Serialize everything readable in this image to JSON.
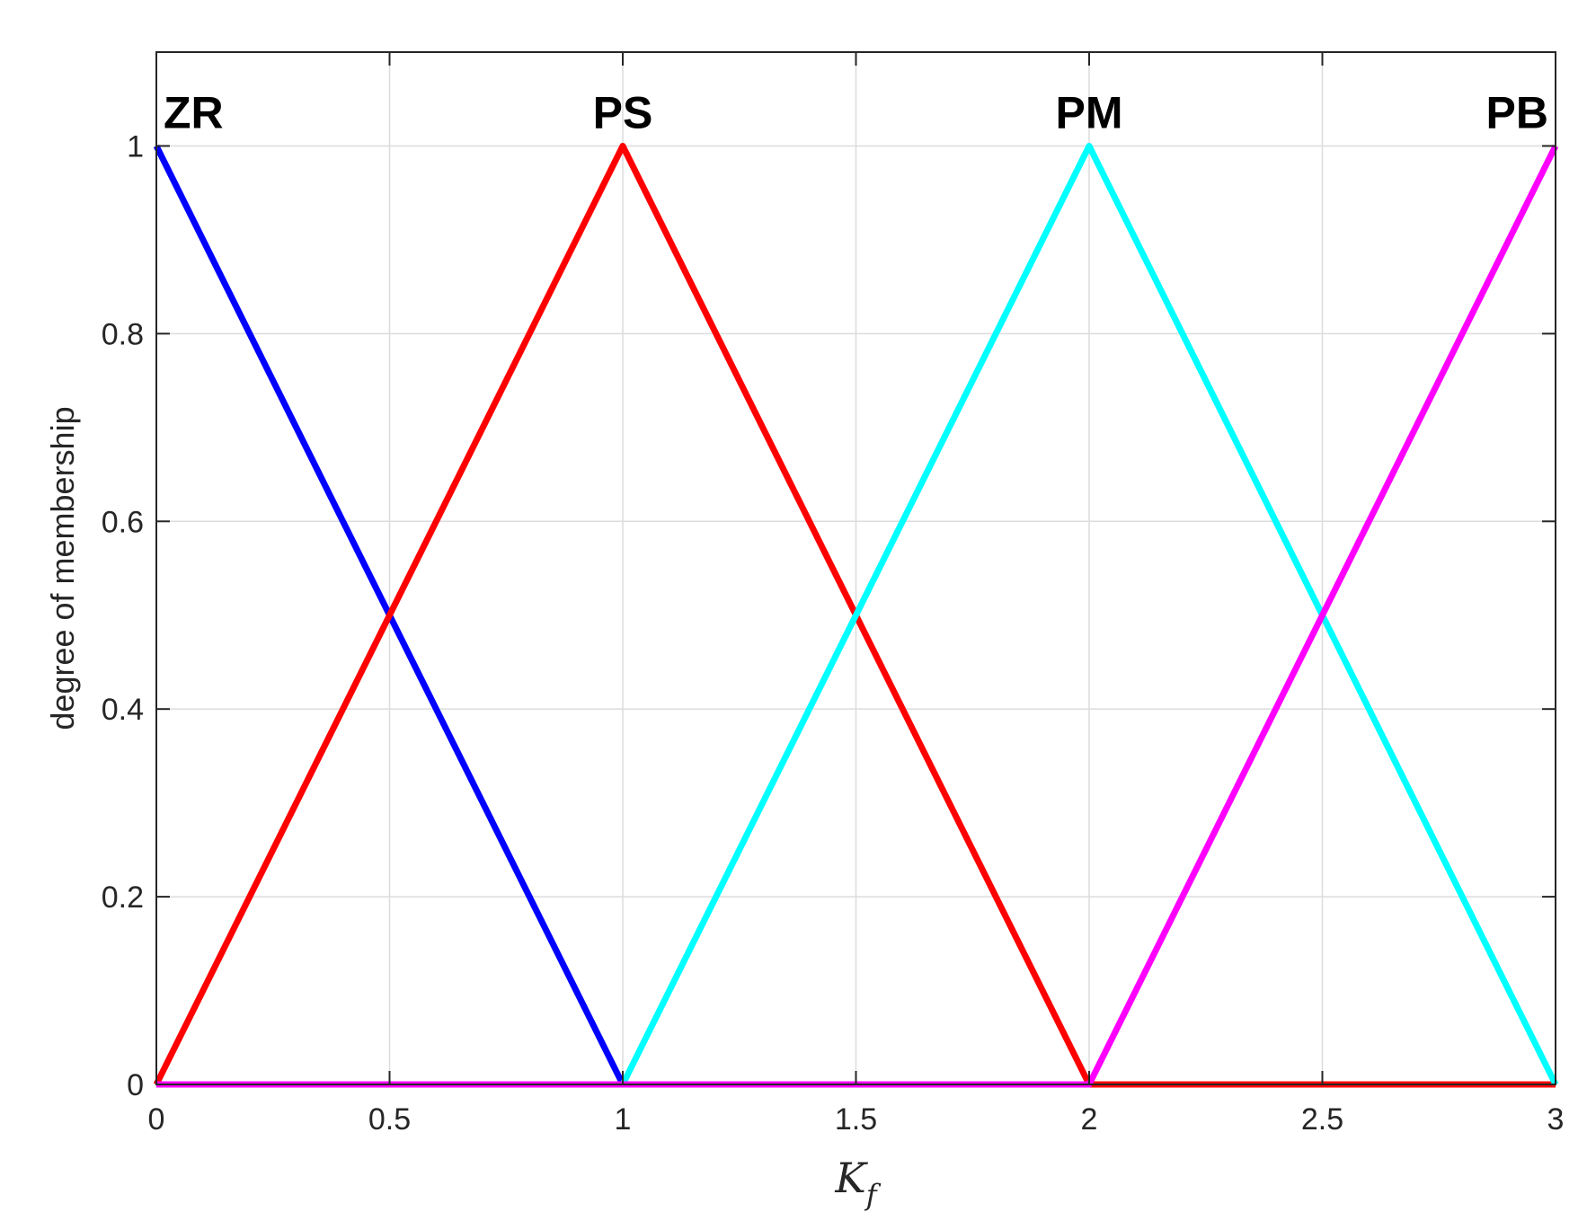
{
  "chart_data": {
    "type": "line",
    "title": "",
    "xlabel_main": "K",
    "xlabel_sub": "f",
    "ylabel": "degree of membership",
    "xlim": [
      0,
      3
    ],
    "ylim": [
      0,
      1.1
    ],
    "xticks": [
      0,
      0.5,
      1,
      1.5,
      2,
      2.5,
      3
    ],
    "xtick_labels": [
      "0",
      "0.5",
      "1",
      "1.5",
      "2",
      "2.5",
      "3"
    ],
    "yticks": [
      0,
      0.2,
      0.4,
      0.6,
      0.8,
      1
    ],
    "ytick_labels": [
      "0",
      "0.2",
      "0.4",
      "0.6",
      "0.8",
      "1"
    ],
    "grid": true,
    "series": [
      {
        "name": "ZR",
        "color": "#0000ff",
        "x": [
          0,
          1,
          3
        ],
        "y": [
          1,
          0,
          0
        ]
      },
      {
        "name": "PS",
        "color": "#ff0000",
        "x": [
          0,
          1,
          2,
          3
        ],
        "y": [
          0,
          1,
          0,
          0
        ]
      },
      {
        "name": "PM",
        "color": "#00ffff",
        "x": [
          0,
          1,
          2,
          3
        ],
        "y": [
          0,
          0,
          1,
          0
        ]
      },
      {
        "name": "PB",
        "color": "#ff00ff",
        "x": [
          0,
          2,
          3
        ],
        "y": [
          0,
          0,
          1
        ]
      }
    ],
    "annotations": [
      {
        "text": "ZR",
        "x": 0.0,
        "y": 1.0,
        "anchor": "start"
      },
      {
        "text": "PS",
        "x": 1.0,
        "y": 1.0,
        "anchor": "middle"
      },
      {
        "text": "PM",
        "x": 2.0,
        "y": 1.0,
        "anchor": "middle"
      },
      {
        "text": "PB",
        "x": 3.0,
        "y": 1.0,
        "anchor": "end"
      }
    ]
  }
}
